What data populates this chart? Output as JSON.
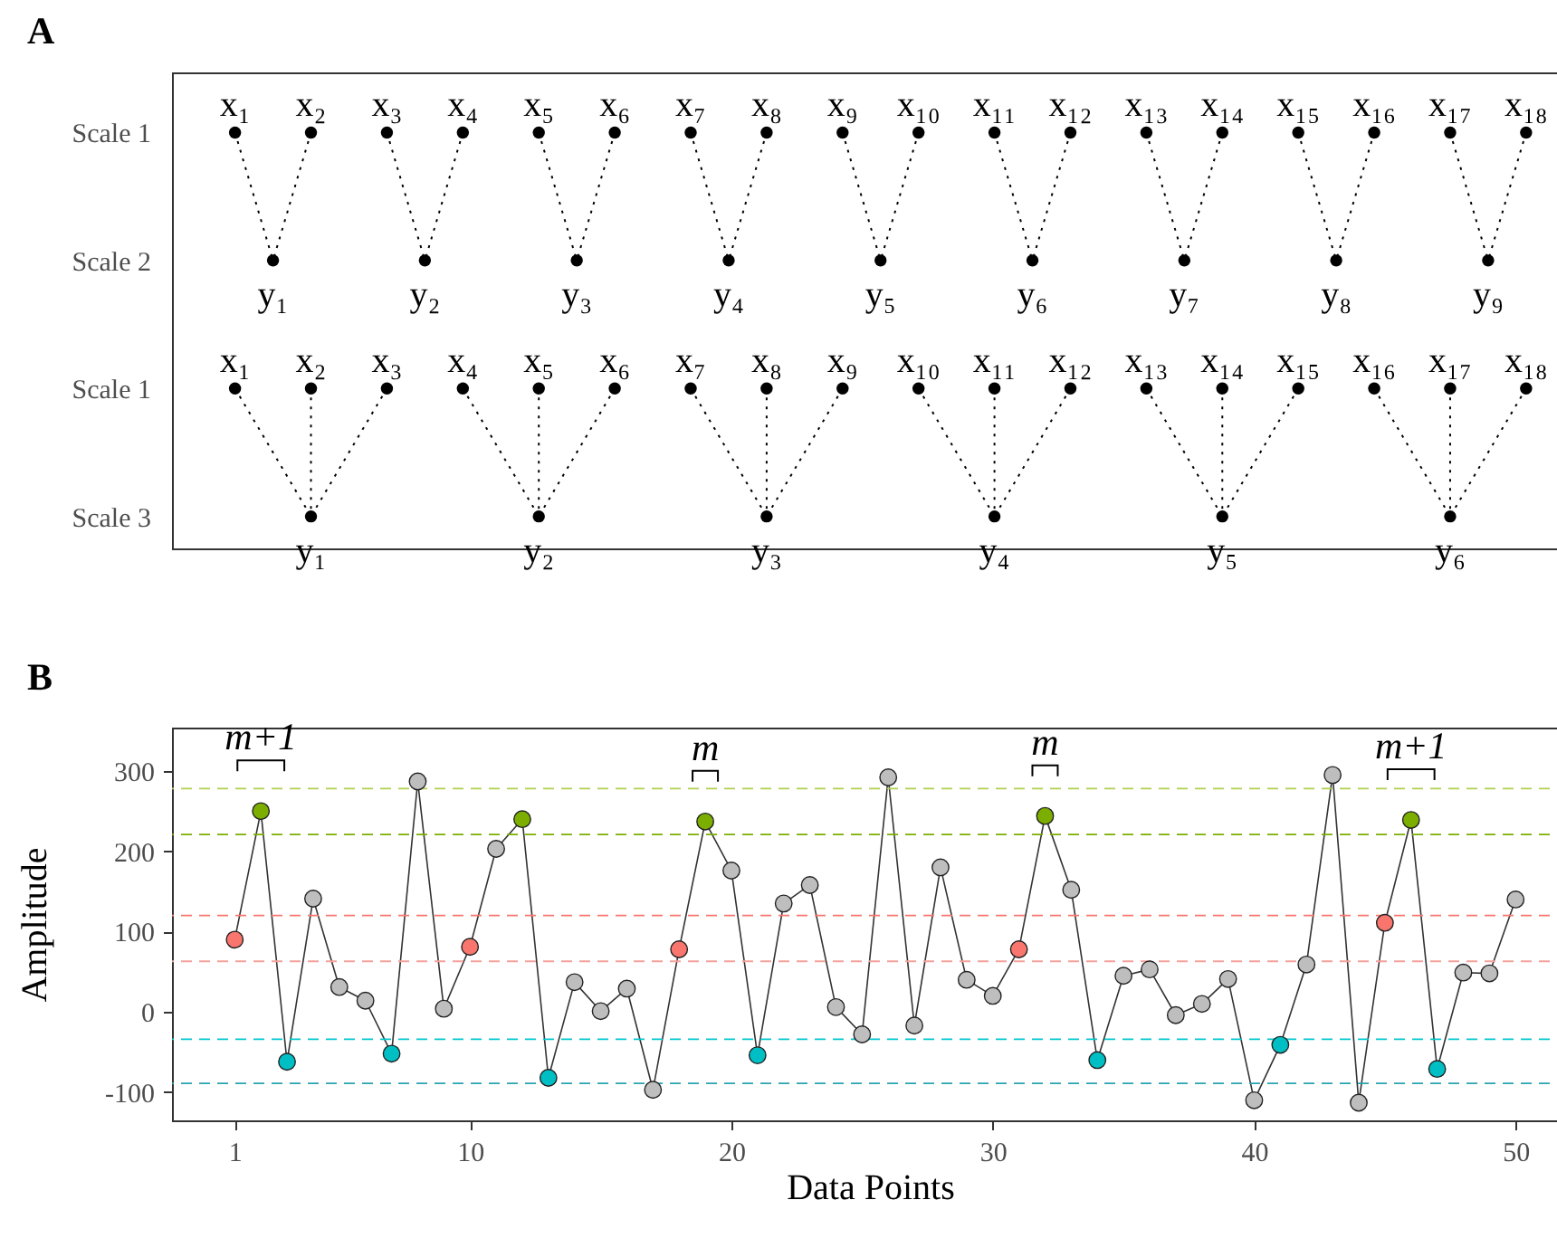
{
  "chart_data": [
    {
      "type": "other",
      "title": "A",
      "y_categories": [
        "Scale 1",
        "Scale 2",
        "Scale 1",
        "Scale 3"
      ],
      "cell_labels": [
        [
          "x₁",
          "x₂",
          "x₃",
          "x₄",
          "x₅",
          "x₆",
          "x₇",
          "x₈",
          "x₉",
          "x₁₀",
          "x₁₁",
          "x₁₂",
          "x₁₃",
          "x₁₄",
          "x₁₅",
          "x₁₆",
          "x₁₇",
          "x₁₈"
        ],
        [
          "y₁",
          "y₂",
          "y₃",
          "y₄",
          "y₅",
          "y₆",
          "y₇",
          "y₈",
          "y₉"
        ],
        [
          "x₁",
          "x₂",
          "x₃",
          "x₄",
          "x₅",
          "x₆",
          "x₇",
          "x₈",
          "x₉",
          "x₁₀",
          "x₁₁",
          "x₁₂",
          "x₁₃",
          "x₁₄",
          "x₁₅",
          "x₁₆",
          "x₁₇",
          "x₁₈"
        ],
        [
          "y₁",
          "y₂",
          "y₃",
          "y₄",
          "y₅",
          "y₆"
        ]
      ]
    },
    {
      "type": "line",
      "title": "B",
      "xlabel": "Data Points",
      "ylabel": "Amplitude",
      "marker": "circle",
      "xlim": [
        -1.4,
        52
      ],
      "ylim": [
        -135,
        354
      ],
      "xticks": [
        1,
        10,
        20,
        30,
        40,
        50
      ],
      "yticks": [
        {
          "value": -100,
          "label": "-100"
        },
        0,
        100,
        200,
        300
      ],
      "x": [
        1,
        2,
        3,
        4,
        5,
        6,
        7,
        8,
        9,
        10,
        11,
        12,
        13,
        14,
        15,
        16,
        17,
        18,
        19,
        20,
        21,
        22,
        23,
        24,
        25,
        26,
        27,
        28,
        29,
        30,
        31,
        32,
        33,
        34,
        35,
        36,
        37,
        38,
        39,
        40,
        41,
        42,
        43,
        44,
        45,
        46,
        47,
        48,
        49,
        50
      ],
      "series": [
        {
          "color": "#333333",
          "values": [
            90,
            250,
            -62,
            141,
            31,
            14,
            -52,
            287,
            4,
            81,
            203,
            240,
            -82,
            37,
            1,
            29,
            -97,
            78,
            237,
            176,
            -54,
            135,
            158,
            6,
            -28,
            292,
            -17,
            180,
            40,
            20,
            78,
            244,
            152,
            -60,
            45,
            53,
            -4,
            10,
            41,
            -110,
            -41,
            59,
            295,
            -113,
            111,
            239,
            -71,
            49,
            48,
            140
          ],
          "colors": [
            "#f8766d",
            "#7cae00",
            "#00bfc4",
            "#bebebe",
            "#bebebe",
            "#bebebe",
            "#00bfc4",
            "#bebebe",
            "#bebebe",
            "#f8766d",
            "#bebebe",
            "#7cae00",
            "#00bfc4",
            "#bebebe",
            "#bebebe",
            "#bebebe",
            "#bebebe",
            "#f8766d",
            "#7cae00",
            "#bebebe",
            "#00bfc4",
            "#bebebe",
            "#bebebe",
            "#bebebe",
            "#bebebe",
            "#bebebe",
            "#bebebe",
            "#bebebe",
            "#bebebe",
            "#bebebe",
            "#f8766d",
            "#7cae00",
            "#bebebe",
            "#00bfc4",
            "#bebebe",
            "#bebebe",
            "#bebebe",
            "#bebebe",
            "#bebebe",
            "#bebebe",
            "#00bfc4",
            "#bebebe",
            "#bebebe",
            "#bebebe",
            "#f8766d",
            "#7cae00",
            "#00bfc4",
            "#bebebe",
            "#bebebe",
            "#bebebe"
          ]
        }
      ],
      "ref_lines": [
        {
          "axis": "y",
          "value": 278,
          "color": "#b0d050",
          "line_style": "dashed"
        },
        {
          "axis": "y",
          "value": 221,
          "color": "#7cae00",
          "line_style": "dashed"
        },
        {
          "axis": "y",
          "value": 120,
          "color": "#f8766d",
          "line_style": "dashed"
        },
        {
          "axis": "y",
          "value": 63,
          "color": "#f4a19b",
          "line_style": "dashed"
        },
        {
          "axis": "y",
          "value": -34,
          "color": "#00c8d0",
          "line_style": "dashed"
        },
        {
          "axis": "y",
          "value": -89,
          "color": "#2aa5b0",
          "line_style": "dashed"
        }
      ],
      "annotations": [
        {
          "text": "m+1",
          "x": 2,
          "y": 250
        },
        {
          "text": "m",
          "x": 19,
          "y": 237
        },
        {
          "text": "m",
          "x": 32,
          "y": 244
        },
        {
          "text": "m+1",
          "x": 46,
          "y": 239
        }
      ]
    }
  ]
}
